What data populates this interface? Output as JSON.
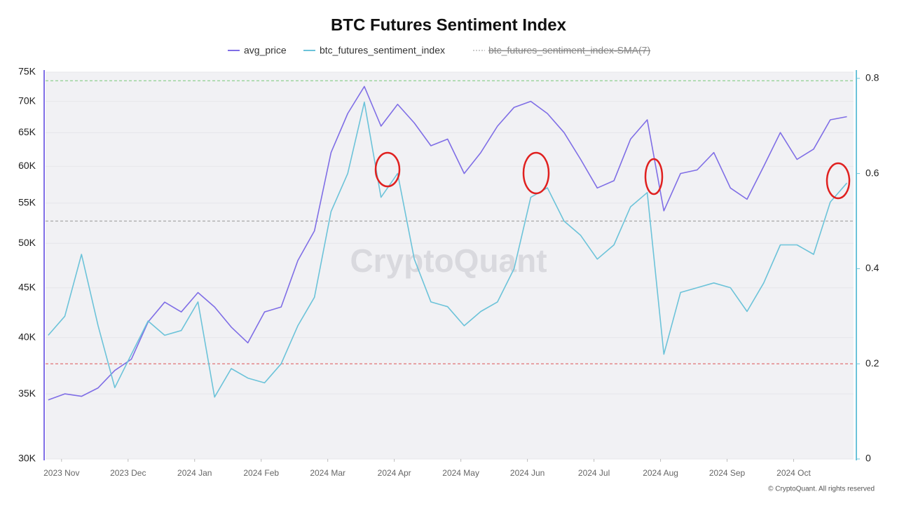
{
  "chart_data": {
    "type": "line",
    "title": "BTC Futures Sentiment Index",
    "legend_hidden_entries": [
      "btc_futures_sentiment_index-SMA(7)"
    ],
    "watermark": "CryptoQuant",
    "footer": "© CryptoQuant. All rights reserved",
    "x": [
      -0.2,
      0.05,
      0.3,
      0.55,
      0.8,
      1.05,
      1.3,
      1.55,
      1.8,
      2.05,
      2.3,
      2.55,
      2.8,
      3.05,
      3.3,
      3.55,
      3.8,
      4.05,
      4.3,
      4.55,
      4.8,
      5.05,
      5.3,
      5.55,
      5.8,
      6.05,
      6.3,
      6.55,
      6.8,
      7.05,
      7.3,
      7.55,
      7.8,
      8.05,
      8.3,
      8.55,
      8.8,
      9.05,
      9.3,
      9.55,
      9.8,
      10.05,
      10.3,
      10.55,
      10.8,
      11.05,
      11.3,
      11.55,
      11.8
    ],
    "xlim": [
      -0.24,
      11.9
    ],
    "xticks": [
      {
        "value": 0,
        "label": "2023 Nov"
      },
      {
        "value": 1,
        "label": "2023 Dec"
      },
      {
        "value": 2,
        "label": "2024 Jan"
      },
      {
        "value": 3,
        "label": "2024 Feb"
      },
      {
        "value": 4,
        "label": "2024 Mar"
      },
      {
        "value": 5,
        "label": "2024 Apr"
      },
      {
        "value": 6,
        "label": "2024 May"
      },
      {
        "value": 7,
        "label": "2024 Jun"
      },
      {
        "value": 8,
        "label": "2024 Jul"
      },
      {
        "value": 9,
        "label": "2024 Aug"
      },
      {
        "value": 10,
        "label": "2024 Sep"
      },
      {
        "value": 11,
        "label": "2024 Oct"
      }
    ],
    "ylim": [
      30000,
      75000
    ],
    "log_y": true,
    "yticks": [
      {
        "value": 30000,
        "label": "30K"
      },
      {
        "value": 35000,
        "label": "35K"
      },
      {
        "value": 40000,
        "label": "40K"
      },
      {
        "value": 45000,
        "label": "45K"
      },
      {
        "value": 50000,
        "label": "50K"
      },
      {
        "value": 55000,
        "label": "55K"
      },
      {
        "value": 60000,
        "label": "60K"
      },
      {
        "value": 65000,
        "label": "65K"
      },
      {
        "value": 70000,
        "label": "70K"
      },
      {
        "value": 75000,
        "label": "75K"
      }
    ],
    "y2lim": [
      0,
      0.813
    ],
    "y2ticks": [
      0,
      0.2,
      0.4,
      0.6,
      0.8
    ],
    "grid": true,
    "series": [
      {
        "name": "avg_price",
        "color": "#7f6ee6",
        "values": [
          34500,
          35000,
          34800,
          35500,
          37000,
          38000,
          41500,
          43500,
          42500,
          44500,
          43000,
          41000,
          39500,
          42500,
          43000,
          48000,
          51500,
          62000,
          68000,
          72500,
          66000,
          69500,
          66500,
          63000,
          64000,
          59000,
          62000,
          66000,
          69000,
          70000,
          68000,
          65000,
          61000,
          57000,
          58000,
          64000,
          67000,
          54000,
          59000,
          59500,
          62000,
          57000,
          55500,
          60000,
          65000,
          61000,
          62500,
          67000,
          67500
        ]
      },
      {
        "name": "btc_futures_sentiment_index",
        "color": "#6cc3d9",
        "axis": "y2",
        "values": [
          0.26,
          0.3,
          0.43,
          0.28,
          0.15,
          0.22,
          0.29,
          0.26,
          0.27,
          0.33,
          0.13,
          0.19,
          0.17,
          0.16,
          0.2,
          0.28,
          0.34,
          0.52,
          0.6,
          0.75,
          0.55,
          0.6,
          0.42,
          0.33,
          0.32,
          0.28,
          0.31,
          0.33,
          0.4,
          0.55,
          0.57,
          0.5,
          0.47,
          0.42,
          0.45,
          0.53,
          0.56,
          0.22,
          0.35,
          0.36,
          0.37,
          0.36,
          0.31,
          0.37,
          0.45,
          0.45,
          0.43,
          0.54,
          0.58
        ]
      }
    ],
    "reference_lines": [
      {
        "value": 0.795,
        "color": "#8fcf8f"
      },
      {
        "value": 0.5,
        "color": "#a8a8a8"
      },
      {
        "value": 0.2,
        "color": "#e06666"
      }
    ]
  }
}
